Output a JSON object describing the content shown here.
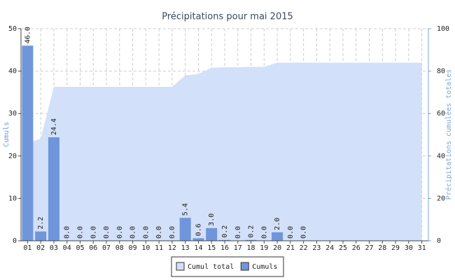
{
  "chart_data": {
    "type": "bar",
    "title": "Précipitations pour mai 2015",
    "y_label": "Cumuls",
    "y2_label": "Précipitations cumulées totales",
    "categories": [
      "01",
      "02",
      "03",
      "04",
      "05",
      "06",
      "07",
      "08",
      "09",
      "10",
      "11",
      "12",
      "13",
      "14",
      "15",
      "16",
      "17",
      "18",
      "19",
      "20",
      "21",
      "22",
      "23",
      "24",
      "25",
      "26",
      "27",
      "28",
      "29",
      "30",
      "31"
    ],
    "series": [
      {
        "name": "Cumul total",
        "type": "area",
        "axis": "y2",
        "color": "#d3e0f9",
        "values": [
          46,
          48.2,
          72.6,
          72.6,
          72.6,
          72.6,
          72.6,
          72.6,
          72.6,
          72.6,
          72.6,
          72.6,
          78,
          78.6,
          81.6,
          81.8,
          81.8,
          82,
          82,
          84,
          84,
          84,
          84,
          84,
          84,
          84,
          84,
          84,
          84,
          84,
          84
        ]
      },
      {
        "name": "Cumuls",
        "type": "bar",
        "color": "#6f96db",
        "values": [
          46,
          2.2,
          24.4,
          0,
          0,
          0,
          0,
          0,
          0,
          0,
          0,
          0,
          5.4,
          0.6,
          3,
          0.2,
          0,
          0.2,
          0,
          2,
          0,
          0,
          null,
          null,
          null,
          null,
          null,
          null,
          null,
          null,
          null
        ],
        "value_labels": [
          "46.0",
          "2.2",
          "24.4",
          "0.0",
          "0.0",
          "0.0",
          "0.0",
          "0.0",
          "0.0",
          "0.0",
          "0.0",
          "0.0",
          "5.4",
          "0.6",
          "3.0",
          "0.2",
          "0.0",
          "0.2",
          "0.0",
          "2.0",
          "0.0",
          "0.0",
          null,
          null,
          null,
          null,
          null,
          null,
          null,
          null,
          null
        ]
      }
    ],
    "ylim": [
      0,
      50
    ],
    "yticks": [
      0,
      10,
      20,
      30,
      40,
      50
    ],
    "y2lim": [
      0,
      100
    ],
    "y2ticks": [
      0,
      20,
      40,
      60,
      80,
      100
    ],
    "grid": true,
    "legend": "bottom"
  }
}
